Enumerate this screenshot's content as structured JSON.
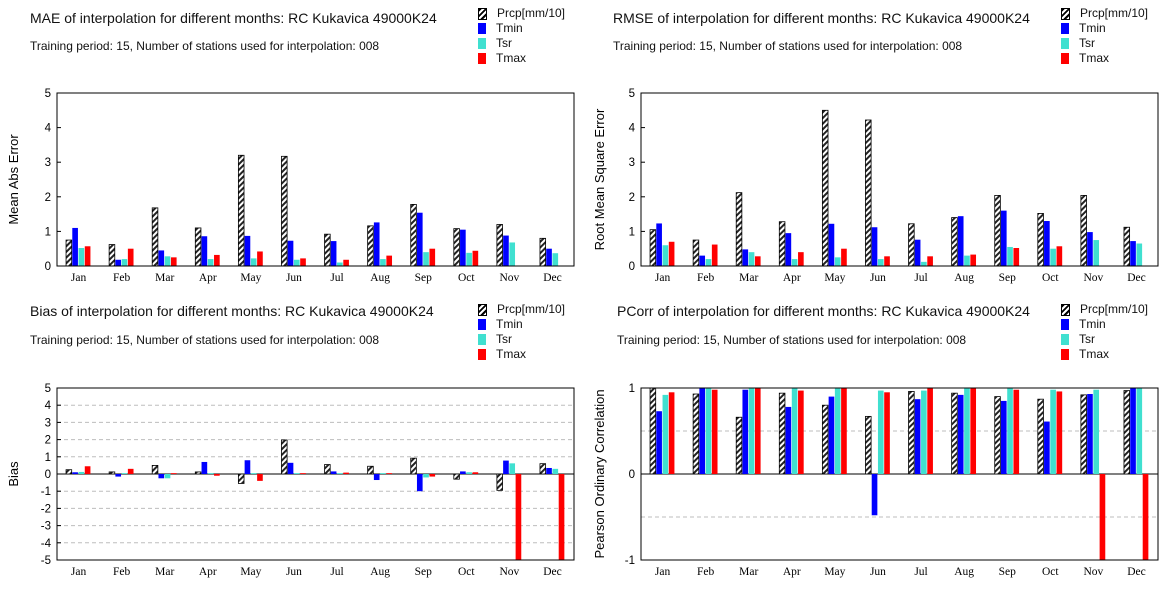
{
  "colors": {
    "Prcp": "#222222",
    "Tmin": "#0000ff",
    "Tsr": "#40e0d0",
    "Tmax": "#ff0000"
  },
  "legend": [
    "Prcp[mm/10]",
    "Tmin",
    "Tsr",
    "Tmax"
  ],
  "chart_data": [
    {
      "type": "bar",
      "title": "MAE of interpolation for different months: RC Kukavica  49000K24",
      "subtitle": "Training period: 15, Number of stations used for interpolation: 008",
      "xlabel": "",
      "ylabel": "Mean Abs Error",
      "ylim": [
        0,
        5
      ],
      "yticks": [
        0,
        1,
        2,
        3,
        4,
        5
      ],
      "ytick_labels": [
        "0",
        "1",
        "2",
        "3",
        "4",
        "5"
      ],
      "grid": false,
      "legend_position": "top-right",
      "categories": [
        "Jan",
        "Feb",
        "Mar",
        "Apr",
        "May",
        "Jun",
        "Jul",
        "Aug",
        "Sep",
        "Oct",
        "Nov",
        "Dec"
      ],
      "series": [
        {
          "name": "Prcp[mm/10]",
          "values": [
            0.75,
            0.62,
            1.68,
            1.1,
            3.2,
            3.17,
            0.92,
            1.16,
            1.78,
            1.08,
            1.2,
            0.8
          ]
        },
        {
          "name": "Tmin",
          "values": [
            1.1,
            0.18,
            0.45,
            0.86,
            0.87,
            0.73,
            0.72,
            1.26,
            1.54,
            1.05,
            0.88,
            0.5
          ]
        },
        {
          "name": "Tsr",
          "values": [
            0.52,
            0.2,
            0.28,
            0.2,
            0.22,
            0.18,
            0.1,
            0.2,
            0.4,
            0.38,
            0.68,
            0.37
          ]
        },
        {
          "name": "Tmax",
          "values": [
            0.57,
            0.5,
            0.25,
            0.32,
            0.42,
            0.22,
            0.18,
            0.3,
            0.5,
            0.44,
            0,
            0
          ]
        }
      ]
    },
    {
      "type": "bar",
      "title": "RMSE of interpolation for different months: RC Kukavica  49000K24",
      "subtitle": "Training period: 15, Number of stations used for interpolation: 008",
      "xlabel": "",
      "ylabel": "Root Mean Square Error",
      "ylim": [
        0,
        5
      ],
      "yticks": [
        0,
        1,
        2,
        3,
        4,
        5
      ],
      "ytick_labels": [
        "0",
        "1",
        "2",
        "3",
        "4",
        "5"
      ],
      "grid": false,
      "legend_position": "top-right",
      "categories": [
        "Jan",
        "Feb",
        "Mar",
        "Apr",
        "May",
        "Jun",
        "Jul",
        "Aug",
        "Sep",
        "Oct",
        "Nov",
        "Dec"
      ],
      "series": [
        {
          "name": "Prcp[mm/10]",
          "values": [
            1.05,
            0.75,
            2.12,
            1.28,
            4.5,
            4.22,
            1.22,
            1.4,
            2.04,
            1.52,
            2.04,
            1.12
          ]
        },
        {
          "name": "Tmin",
          "values": [
            1.23,
            0.3,
            0.48,
            0.95,
            1.22,
            1.12,
            0.76,
            1.44,
            1.6,
            1.3,
            0.98,
            0.72
          ]
        },
        {
          "name": "Tsr",
          "values": [
            0.6,
            0.2,
            0.4,
            0.2,
            0.25,
            0.2,
            0.12,
            0.3,
            0.55,
            0.5,
            0.75,
            0.65
          ]
        },
        {
          "name": "Tmax",
          "values": [
            0.7,
            0.62,
            0.28,
            0.4,
            0.5,
            0.28,
            0.28,
            0.33,
            0.52,
            0.57,
            0,
            0
          ]
        }
      ]
    },
    {
      "type": "bar",
      "title": "Bias of interpolation for different months: RC Kukavica  49000K24",
      "subtitle": "Training period: 15, Number of stations used for interpolation: 008",
      "xlabel": "",
      "ylabel": "Bias",
      "ylim": [
        -5,
        5
      ],
      "yticks": [
        -5,
        -4,
        -3,
        -2,
        -1,
        0,
        1,
        2,
        3,
        4,
        5
      ],
      "ytick_labels": [
        "-5",
        "-4",
        "-3",
        "-2",
        "-1",
        "0",
        "1",
        "2",
        "3",
        "4",
        "5"
      ],
      "grid": true,
      "legend_position": "top-right",
      "categories": [
        "Jan",
        "Feb",
        "Mar",
        "Apr",
        "May",
        "Jun",
        "Jul",
        "Aug",
        "Sep",
        "Oct",
        "Nov",
        "Dec"
      ],
      "series": [
        {
          "name": "Prcp[mm/10]",
          "values": [
            0.25,
            0.12,
            0.5,
            0.12,
            -0.55,
            1.98,
            0.55,
            0.45,
            0.92,
            -0.3,
            -0.95,
            0.6
          ]
        },
        {
          "name": "Tmin",
          "values": [
            0.1,
            -0.15,
            -0.25,
            0.7,
            0.8,
            0.65,
            0.15,
            -0.35,
            -1.0,
            0.15,
            0.78,
            0.35
          ]
        },
        {
          "name": "Tsr",
          "values": [
            0.12,
            0.05,
            -0.25,
            0.05,
            0.05,
            0.05,
            0.05,
            0.05,
            -0.2,
            0.1,
            0.62,
            0.3
          ]
        },
        {
          "name": "Tmax",
          "values": [
            0.45,
            0.3,
            0.05,
            -0.1,
            -0.4,
            0.05,
            0.08,
            0.05,
            -0.15,
            0.1,
            -5,
            -5
          ]
        }
      ]
    },
    {
      "type": "bar",
      "title": "PCorr of interpolation for different months: RC Kukavica  49000K24",
      "subtitle": "Training period: 15, Number of stations used for interpolation: 008",
      "xlabel": "",
      "ylabel": "Pearson Ordinary Correlation",
      "ylim": [
        -1,
        1
      ],
      "yticks": [
        -1,
        0,
        1
      ],
      "ytick_labels": [
        "-1",
        "0",
        "1"
      ],
      "gridlines": [
        -0.5,
        0.5
      ],
      "grid": true,
      "legend_position": "top-right",
      "categories": [
        "Jan",
        "Feb",
        "Mar",
        "Apr",
        "May",
        "Jun",
        "Jul",
        "Aug",
        "Sep",
        "Oct",
        "Nov",
        "Dec"
      ],
      "series": [
        {
          "name": "Prcp[mm/10]",
          "values": [
            1.0,
            0.93,
            0.66,
            0.94,
            0.8,
            0.67,
            0.96,
            0.94,
            0.9,
            0.87,
            0.92,
            0.97
          ]
        },
        {
          "name": "Tmin",
          "values": [
            0.73,
            1.0,
            0.98,
            0.78,
            0.9,
            -0.48,
            0.87,
            0.92,
            0.85,
            0.61,
            0.93,
            1.0
          ]
        },
        {
          "name": "Tsr",
          "values": [
            0.92,
            1.0,
            1.0,
            1.0,
            1.0,
            0.97,
            0.97,
            1.0,
            1.0,
            0.98,
            0.98,
            1.0
          ]
        },
        {
          "name": "Tmax",
          "values": [
            0.95,
            0.98,
            1.0,
            0.97,
            1.0,
            0.95,
            1.0,
            1.0,
            0.98,
            0.96,
            -1.0,
            -1.0
          ]
        }
      ]
    }
  ]
}
